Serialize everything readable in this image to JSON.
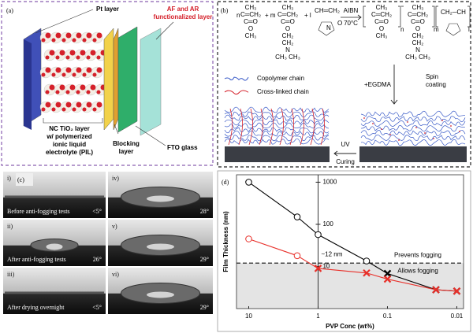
{
  "panel_a": {
    "label": "(a)",
    "pt_layer": "Pt layer",
    "af_ar_layer": [
      "AF and AR",
      "functionalized layer"
    ],
    "tio2_layer": [
      "NC TiO₂ layer",
      "w/ polymerized",
      "ionic liquid",
      "electrolyte (PIL)"
    ],
    "blocking_layer": [
      "Blocking",
      "layer"
    ],
    "fto_glass": "FTO glass"
  },
  "panel_b": {
    "label": "(b)",
    "reaction": [
      "n",
      "+ m",
      "+ l"
    ],
    "monomer_1": [
      "CH₃",
      "C═CH₂",
      "C═O",
      "O",
      "CH₃"
    ],
    "monomer_2": [
      "CH₃",
      "C═CH₂",
      "C═O",
      "O",
      "CH₂",
      "CH₂",
      "N",
      "CH₃  CH₃"
    ],
    "monomer_3": [
      "CH═CH₂",
      "N",
      "O"
    ],
    "reaction_condition": [
      "AIBN",
      "70°C"
    ],
    "product": [
      "CH₃",
      "CH₃",
      "CH₂─CH",
      "n",
      "m",
      "l"
    ],
    "legend": [
      "Copolymer chain",
      "Cross-linked chain"
    ],
    "egdma": "+EGDMA",
    "spin_coating": [
      "Spin",
      "coating"
    ],
    "uv": "UV",
    "curing": "Curing"
  },
  "panel_c": {
    "label": "(c)",
    "images": [
      {
        "index": "i)",
        "caption": "Before anti-fogging tests",
        "angle": "<5°"
      },
      {
        "index": "iv)",
        "angle": "28°"
      },
      {
        "index": "ii)",
        "caption": "After anti-fogging tests",
        "angle": "26°"
      },
      {
        "index": "v)",
        "angle": "29°"
      },
      {
        "index": "iii)",
        "caption": "After drying overnight",
        "angle": "<5°"
      },
      {
        "index": "vi)",
        "angle": "29°"
      }
    ]
  },
  "chart_data": {
    "type": "line",
    "panel_label": "(d)",
    "x_label": "PVP Conc (wt%)",
    "y_label": "Film Thickness (nm)",
    "log_x": true,
    "log_y": true,
    "x_reversed": true,
    "x": [
      10,
      2,
      1,
      0.2,
      0.1,
      0.02,
      0.01
    ],
    "series": [
      {
        "color": "#000000",
        "values": [
          1000,
          150,
          57,
          13.5,
          6.8,
          2.8,
          2.6
        ],
        "markers": [
          "o",
          "o",
          "o",
          "o",
          "x",
          "x",
          "x"
        ]
      },
      {
        "color": "#e8302a",
        "values": [
          45,
          18,
          9,
          7,
          5,
          2.8,
          2.6
        ],
        "markers": [
          "o",
          "o",
          "x",
          "x",
          "x",
          "x",
          "x"
        ]
      }
    ],
    "xlim": [
      15,
      0.008
    ],
    "ylim": [
      1,
      1500
    ],
    "xticks": [
      10,
      1,
      0.1,
      0.01
    ],
    "yticks": [
      10,
      100,
      1000
    ],
    "vline": 1,
    "threshold": {
      "value": 12,
      "label": "~12 nm"
    },
    "regions": [
      "Prevents fogging",
      "Allows fogging"
    ]
  }
}
